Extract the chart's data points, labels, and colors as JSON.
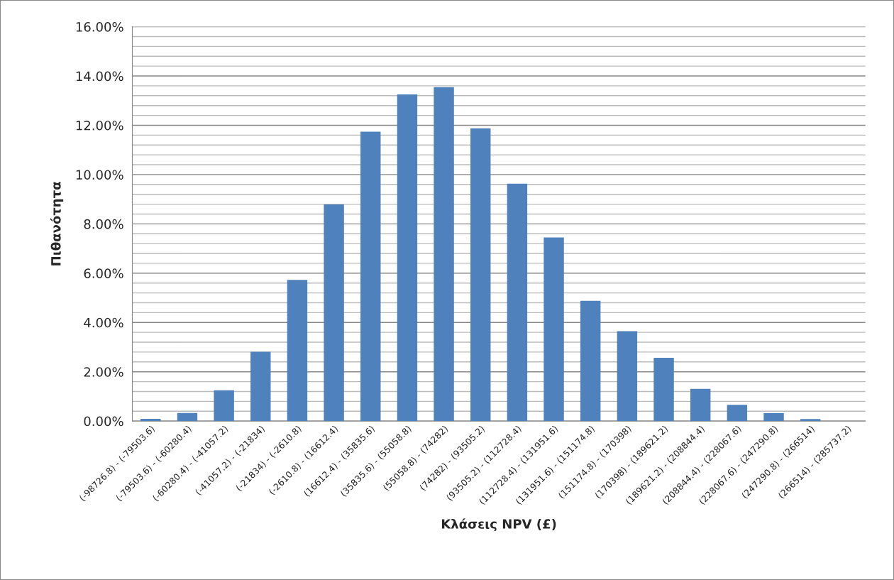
{
  "chart_data": {
    "type": "bar",
    "xlabel": "Κλάσεις NPV (£)",
    "ylabel": "Πιθανότητα",
    "categories": [
      "(-98726.8) - (-79503.6)",
      "(-79503.6) - (-60280.4)",
      "(-60280.4) - (-41057.2)",
      "(-41057.2) - (-21834)",
      "(-21834) - (-2610.8)",
      "(-2610.8) - (16612.4)",
      "(16612.4) - (35835.6)",
      "(35835.6) - (55058.8)",
      "(55058.8) - (74282)",
      "(74282) - (93505.2)",
      "(93505.2) - (112728.4)",
      "(112728.4) - (131951.6)",
      "(131951.6) - (151174.8)",
      "(151174.8) - (170398)",
      "(170398) - (189621.2)",
      "(189621.2) - (208844.4)",
      "(208844.4) - (228067.6)",
      "(228067.6) - (247290.8)",
      "(247290.8) - (266514)",
      "(266514) - (285737.2)"
    ],
    "values": [
      0.09,
      0.33,
      1.25,
      2.81,
      5.73,
      8.79,
      11.74,
      13.25,
      13.55,
      11.88,
      9.63,
      7.45,
      4.88,
      3.65,
      2.57,
      1.31,
      0.66,
      0.32,
      0.08,
      0
    ],
    "color": "#4f81bd",
    "ylim": [
      0,
      16
    ],
    "yticks": [
      {
        "value": 0,
        "label": "0.00%"
      },
      {
        "value": 0.4,
        "label": null
      },
      {
        "value": 0.8,
        "label": null
      },
      {
        "value": 1.2,
        "label": null
      },
      {
        "value": 1.6,
        "label": null
      },
      {
        "value": 2,
        "label": "2.00%"
      },
      {
        "value": 2.4,
        "label": null
      },
      {
        "value": 2.8,
        "label": null
      },
      {
        "value": 3.2,
        "label": null
      },
      {
        "value": 3.6,
        "label": null
      },
      {
        "value": 4,
        "label": "4.00%"
      },
      {
        "value": 4.4,
        "label": null
      },
      {
        "value": 4.8,
        "label": null
      },
      {
        "value": 5.2,
        "label": null
      },
      {
        "value": 5.6,
        "label": null
      },
      {
        "value": 6,
        "label": "6.00%"
      },
      {
        "value": 6.4,
        "label": null
      },
      {
        "value": 6.8,
        "label": null
      },
      {
        "value": 7.2,
        "label": null
      },
      {
        "value": 7.6,
        "label": null
      },
      {
        "value": 8,
        "label": "8.00%"
      },
      {
        "value": 8.4,
        "label": null
      },
      {
        "value": 8.8,
        "label": null
      },
      {
        "value": 9.2,
        "label": null
      },
      {
        "value": 9.6,
        "label": null
      },
      {
        "value": 10,
        "label": "10.00%"
      },
      {
        "value": 10.4,
        "label": null
      },
      {
        "value": 10.8,
        "label": null
      },
      {
        "value": 11.2,
        "label": null
      },
      {
        "value": 11.6,
        "label": null
      },
      {
        "value": 12,
        "label": "12.00%"
      },
      {
        "value": 12.4,
        "label": null
      },
      {
        "value": 12.8,
        "label": null
      },
      {
        "value": 13.2,
        "label": null
      },
      {
        "value": 13.6,
        "label": null
      },
      {
        "value": 14,
        "label": "14.00%"
      },
      {
        "value": 14.4,
        "label": null
      },
      {
        "value": 14.8,
        "label": null
      },
      {
        "value": 15.2,
        "label": null
      },
      {
        "value": 15.6,
        "label": null
      },
      {
        "value": 16,
        "label": "16.00%"
      }
    ],
    "grid": "y",
    "legend": false
  }
}
